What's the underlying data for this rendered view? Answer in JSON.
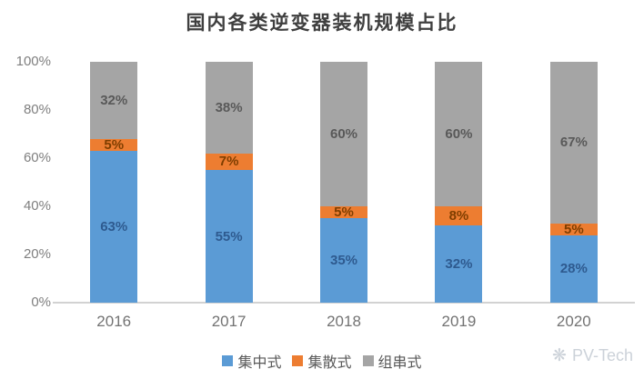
{
  "title": "国内各类逆变器装机规模占比",
  "chart_data": {
    "type": "bar",
    "stacked": true,
    "title": "国内各类逆变器装机规模占比",
    "categories": [
      "2016",
      "2017",
      "2018",
      "2019",
      "2020"
    ],
    "series": [
      {
        "name": "集中式",
        "color": "#5B9BD5",
        "label_color": "#2E5A8F",
        "values": [
          63,
          55,
          35,
          32,
          28
        ]
      },
      {
        "name": "集散式",
        "color": "#ED7D31",
        "label_color": "#7F3E00",
        "values": [
          5,
          7,
          5,
          8,
          5
        ]
      },
      {
        "name": "组串式",
        "color": "#A5A5A5",
        "label_color": "#595959",
        "values": [
          32,
          38,
          60,
          60,
          67
        ]
      }
    ],
    "xlabel": "",
    "ylabel": "",
    "ylim": [
      0,
      100
    ],
    "ytick_labels": [
      "0%",
      "20%",
      "40%",
      "60%",
      "80%",
      "100%"
    ],
    "ytick_values": [
      0,
      20,
      40,
      60,
      80,
      100
    ],
    "value_suffix": "%",
    "grid": false,
    "legend_position": "bottom"
  },
  "watermark": {
    "icon": "sun-icon",
    "icon_glyph": "❋",
    "label": "PV-Tech"
  }
}
